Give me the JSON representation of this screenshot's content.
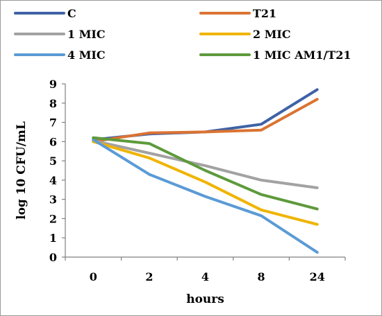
{
  "chart_data": {
    "type": "line",
    "x": [
      "0",
      "2",
      "4",
      "8",
      "24"
    ],
    "xlabel": "hours",
    "ylabel": "log 10 CFU/mL",
    "ylim": [
      0,
      9
    ],
    "yticks": [
      0,
      1,
      2,
      3,
      4,
      5,
      6,
      7,
      8,
      9
    ],
    "grid": false,
    "legend_position": "top",
    "series": [
      {
        "name": "C",
        "color": "#3f62a6",
        "values": [
          6.1,
          6.4,
          6.5,
          6.9,
          8.7
        ]
      },
      {
        "name": "T21",
        "color": "#db7332",
        "values": [
          6.0,
          6.45,
          6.5,
          6.6,
          8.2
        ]
      },
      {
        "name": "1 MIC",
        "color": "#a2a2a2",
        "values": [
          6.05,
          5.4,
          4.75,
          4.0,
          3.6
        ]
      },
      {
        "name": "2 MIC",
        "color": "#f0b400",
        "values": [
          6.0,
          5.15,
          3.9,
          2.45,
          1.7
        ]
      },
      {
        "name": "4 MIC",
        "color": "#5b9bd5",
        "values": [
          6.1,
          4.3,
          3.15,
          2.15,
          0.25
        ]
      },
      {
        "name": "1 MIC AM1/T21",
        "color": "#5e9a3c",
        "values": [
          6.2,
          5.9,
          4.5,
          3.25,
          2.5
        ]
      }
    ]
  }
}
